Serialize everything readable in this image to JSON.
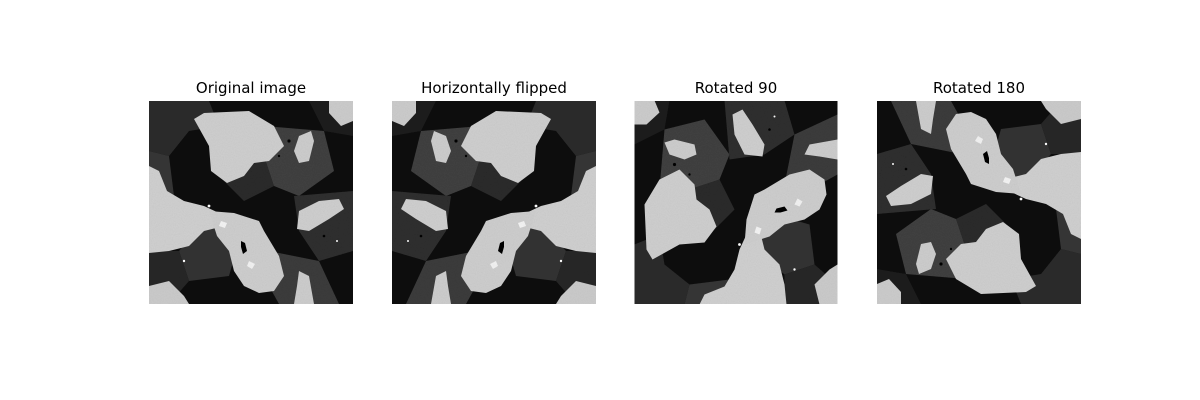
{
  "figure": {
    "panels": [
      {
        "id": "p1",
        "title": "Original image",
        "transform": "identity"
      },
      {
        "id": "p2",
        "title": "Horizontally flipped",
        "transform": "flip-h"
      },
      {
        "id": "p3",
        "title": "Rotated 90",
        "transform": "rot90"
      },
      {
        "id": "p4",
        "title": "Rotated 180",
        "transform": "rot180"
      }
    ]
  },
  "colors": {
    "dark": "#0d0d0d",
    "mid": "#3a3a3a",
    "light": "#cfcfcf",
    "bright": "#f5f5f5"
  }
}
